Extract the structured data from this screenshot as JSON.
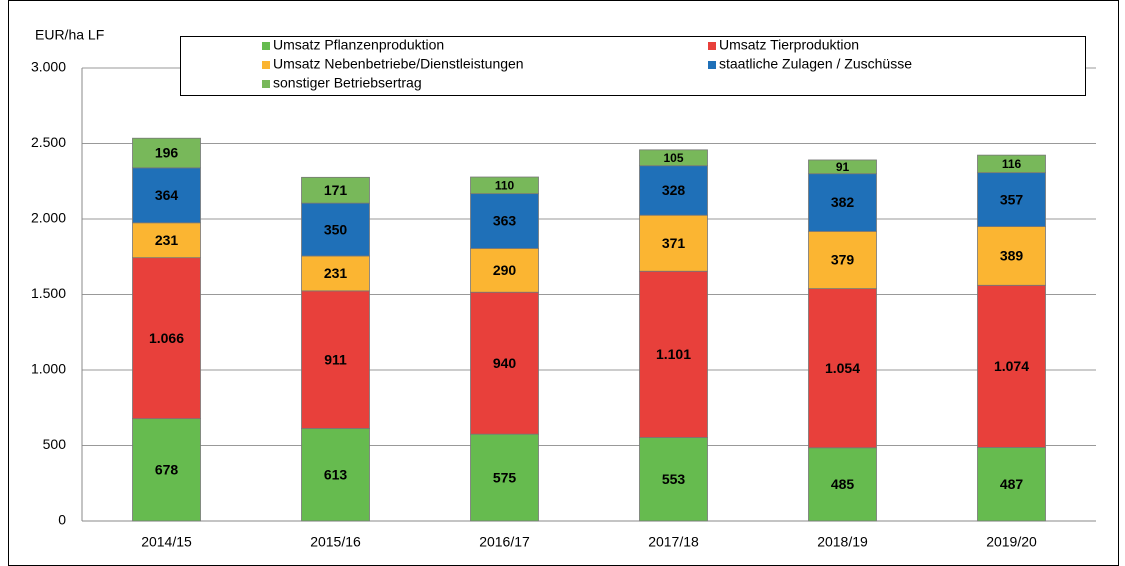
{
  "chart_data": {
    "type": "stacked_bar",
    "y_axis_label": "EUR/ha LF",
    "categories": [
      "2014/15",
      "2015/16",
      "2016/17",
      "2017/18",
      "2018/19",
      "2019/20"
    ],
    "series": [
      {
        "name": "Umsatz Pflanzenproduktion",
        "color": "#66bb4f",
        "values": [
          678,
          613,
          575,
          553,
          485,
          487
        ]
      },
      {
        "name": "Umsatz Tierproduktion",
        "color": "#e8403b",
        "values": [
          1066,
          911,
          940,
          1101,
          1054,
          1074
        ],
        "value_labels": [
          "1.066",
          "911",
          "940",
          "1.101",
          "1.054",
          "1.074"
        ]
      },
      {
        "name": "Umsatz Nebenbetriebe/Dienstleistungen",
        "color": "#fbb532",
        "values": [
          231,
          231,
          290,
          371,
          379,
          389
        ]
      },
      {
        "name": "staatliche Zulagen / Zuschüsse",
        "color": "#1f70b8",
        "values": [
          364,
          350,
          363,
          328,
          382,
          357
        ]
      },
      {
        "name": "sonstiger Betriebsertrag",
        "color": "#78b85a",
        "values": [
          196,
          171,
          110,
          105,
          91,
          116
        ]
      }
    ],
    "ylim": [
      0,
      3000
    ],
    "yticks": [
      0,
      500,
      {
        "value": 1000,
        "label": "1.000"
      },
      {
        "value": 1500,
        "label": "1.500"
      },
      {
        "value": 2000,
        "label": "2.000"
      },
      {
        "value": 2500,
        "label": "2.500"
      },
      {
        "value": 3000,
        "label": "3.000"
      }
    ],
    "grid": true
  }
}
